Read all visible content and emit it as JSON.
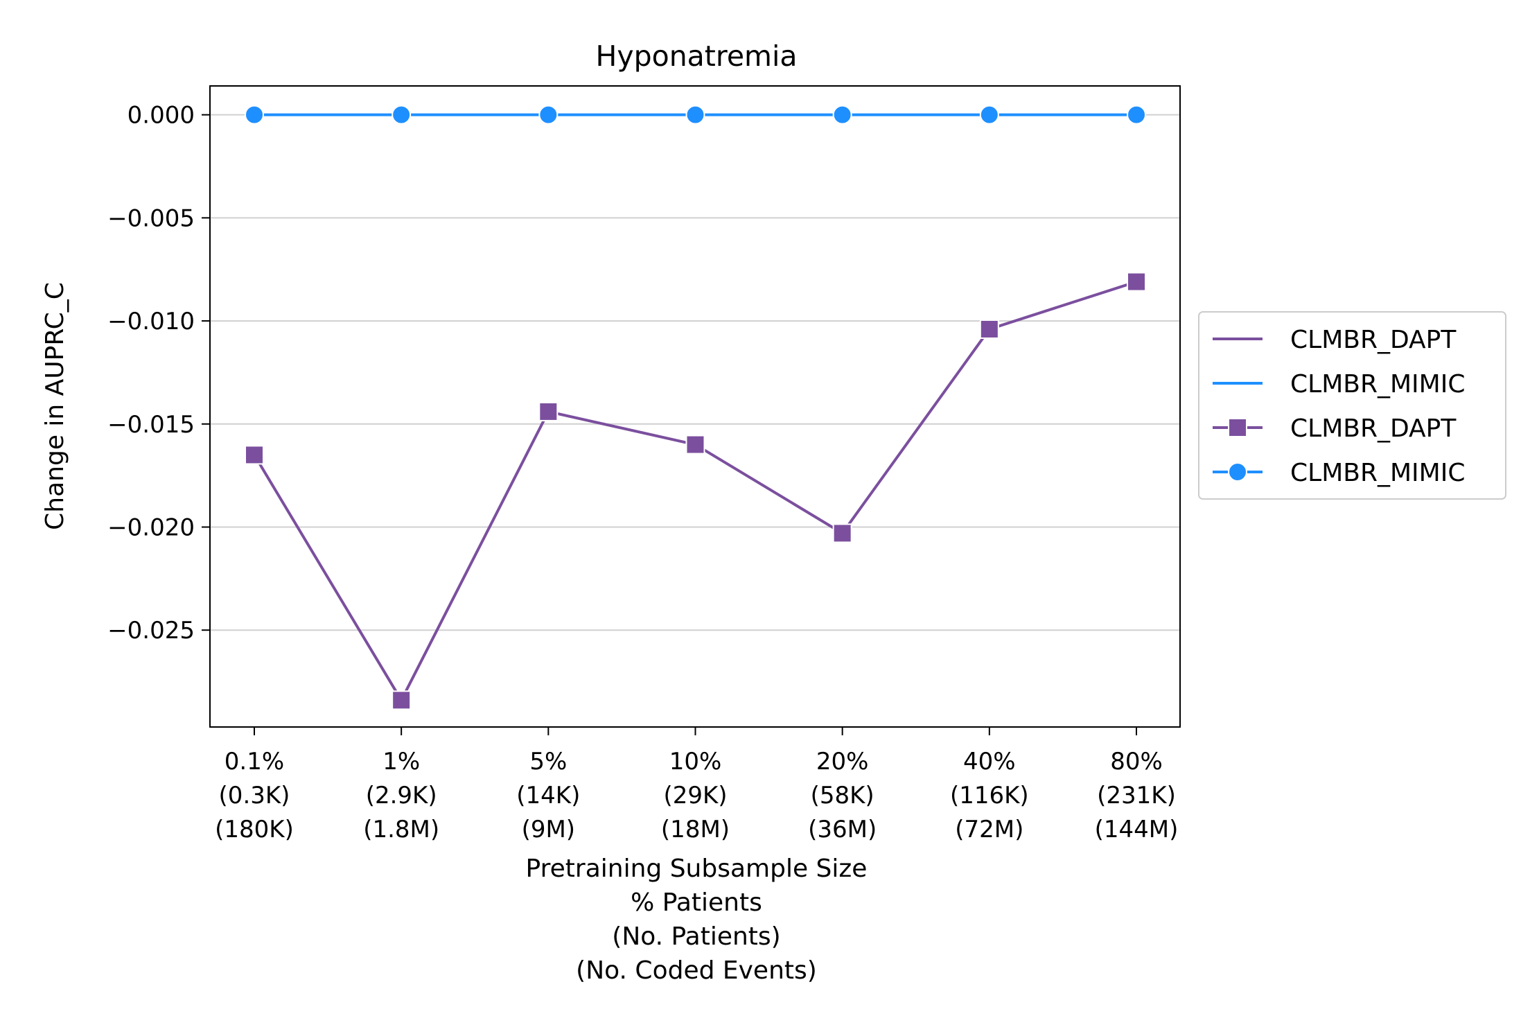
{
  "chart_data": {
    "type": "line",
    "title": "Hyponatremia",
    "ylabel": "Change in AUPRC_C",
    "xlabel_lines": [
      "Pretraining Subsample Size",
      "% Patients",
      "(No. Patients)",
      "(No. Coded Events)"
    ],
    "categories": [
      [
        "0.1%",
        "(0.3K)",
        "(180K)"
      ],
      [
        "1%",
        "(2.9K)",
        "(1.8M)"
      ],
      [
        "5%",
        "(14K)",
        "(9M)"
      ],
      [
        "10%",
        "(29K)",
        "(18M)"
      ],
      [
        "20%",
        "(58K)",
        "(36M)"
      ],
      [
        "40%",
        "(116K)",
        "(72M)"
      ],
      [
        "80%",
        "(231K)",
        "(144M)"
      ]
    ],
    "ylim": [
      -0.0297,
      0.0014
    ],
    "yticks": [
      0.0,
      -0.005,
      -0.01,
      -0.015,
      -0.02,
      -0.025
    ],
    "ytick_labels": [
      "0.000",
      "−0.005",
      "−0.010",
      "−0.015",
      "−0.020",
      "−0.025"
    ],
    "grid": "y",
    "legend_position": "right outside",
    "series": [
      {
        "name": "CLMBR_DAPT",
        "color": "#7B4F9E",
        "marker": "square",
        "values": [
          -0.0165,
          -0.0284,
          -0.0144,
          -0.016,
          -0.0203,
          -0.0104,
          -0.0081
        ]
      },
      {
        "name": "CLMBR_MIMIC",
        "color": "#1E8FFF",
        "marker": "circle",
        "values": [
          0.0,
          0.0,
          0.0,
          0.0,
          0.0,
          0.0,
          0.0
        ]
      }
    ],
    "legend": [
      {
        "label": "CLMBR_DAPT",
        "color": "#7B4F9E",
        "marker": "none"
      },
      {
        "label": "CLMBR_MIMIC",
        "color": "#1E8FFF",
        "marker": "none"
      },
      {
        "label": "CLMBR_DAPT",
        "color": "#7B4F9E",
        "marker": "square"
      },
      {
        "label": "CLMBR_MIMIC",
        "color": "#1E8FFF",
        "marker": "circle"
      }
    ]
  }
}
